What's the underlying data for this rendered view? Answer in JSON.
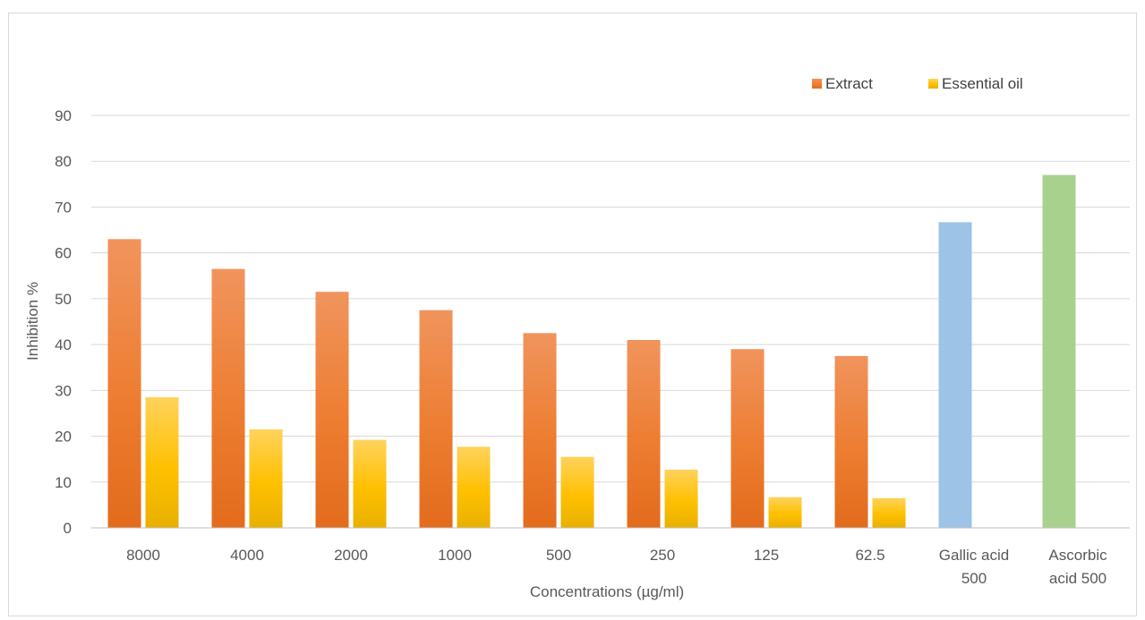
{
  "chart_data": {
    "type": "bar",
    "title": "",
    "xlabel": "Concentrations (µg/ml)",
    "ylabel": "Inhibition %",
    "ylim": [
      0,
      90
    ],
    "yticks": [
      0,
      10,
      20,
      30,
      40,
      50,
      60,
      70,
      80,
      90
    ],
    "grid": true,
    "legend_position": "top-right",
    "categories": [
      [
        "8000"
      ],
      [
        "4000"
      ],
      [
        "2000"
      ],
      [
        "1000"
      ],
      [
        "500"
      ],
      [
        "250"
      ],
      [
        "125"
      ],
      [
        "62.5"
      ],
      [
        "Gallic acid",
        "500"
      ],
      [
        "Ascorbic",
        "acid 500"
      ]
    ],
    "series": [
      {
        "name": "Extract",
        "color": "#ed7d31",
        "values": [
          63,
          56.5,
          51.5,
          47.5,
          42.5,
          41,
          39,
          37.5,
          null,
          null
        ]
      },
      {
        "name": "Essential oil",
        "color": "#ffc000",
        "values": [
          28.5,
          21.5,
          19.2,
          17.7,
          15.5,
          12.7,
          6.7,
          6.5,
          null,
          null
        ]
      }
    ],
    "standards": [
      {
        "category_index": 8,
        "value": 66.7,
        "color": "#9dc3e6"
      },
      {
        "category_index": 9,
        "value": 77,
        "color": "#a9d18e"
      }
    ]
  }
}
